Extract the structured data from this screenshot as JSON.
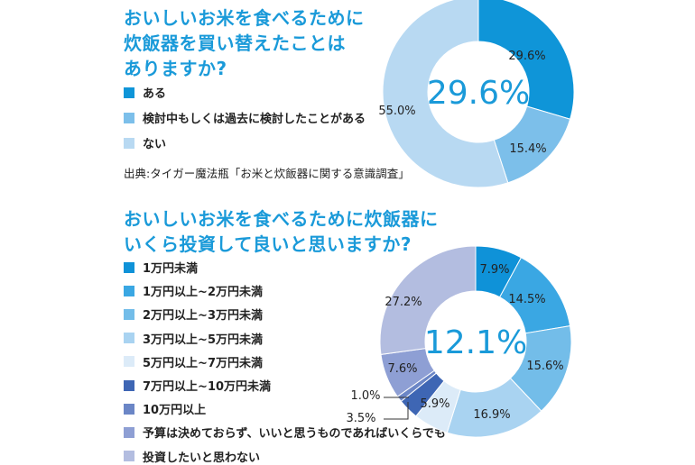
{
  "chart_data": [
    {
      "type": "pie",
      "variant": "donut",
      "title": "おいしいお米を食べるために炊飯器を買い替えたことはありますか?",
      "title_lines": [
        "おいしいお米を食べるために",
        "炊飯器を買い替えたことは",
        "ありますか?"
      ],
      "center_label": "29.6%",
      "categories": [
        "ある",
        "検討中もしくは過去に検討したことがある",
        "ない"
      ],
      "values": [
        29.6,
        15.4,
        55.0
      ],
      "labels": [
        "29.6%",
        "15.4%",
        "55.0%"
      ],
      "colors": [
        "#0f95d8",
        "#7cbfea",
        "#b8d9f2"
      ],
      "source": "出典:タイガー魔法瓶「お米と炊飯器に関する意識調査」",
      "legend_placement": "left"
    },
    {
      "type": "pie",
      "variant": "donut",
      "title": "おいしいお米を食べるために炊飯器にいくら投資して良いと思いますか?",
      "title_lines": [
        "おいしいお米を食べるために炊飯器に",
        "いくら投資して良いと思いますか?"
      ],
      "center_label": "12.1%",
      "categories": [
        "1万円未満",
        "1万円以上~2万円未満",
        "2万円以上~3万円未満",
        "3万円以上~5万円未満",
        "5万円以上~7万円未満",
        "7万円以上~10万円未満",
        "10万円以上",
        "予算は決めておらず、いいと思うものであればいくらでも",
        "投資したいと思わない"
      ],
      "values": [
        7.9,
        14.5,
        15.6,
        16.9,
        5.9,
        3.5,
        1.0,
        7.6,
        27.2
      ],
      "labels": [
        "7.9%",
        "14.5%",
        "15.6%",
        "16.9%",
        "5.9%",
        "3.5%",
        "1.0%",
        "7.6%",
        "27.2%"
      ],
      "colors": [
        "#0f92d8",
        "#3aa7e3",
        "#73bde9",
        "#a9d3f1",
        "#dcebf8",
        "#3e66b4",
        "#6b86c6",
        "#8e9fd4",
        "#b3bde0"
      ],
      "legend_placement": "left"
    }
  ]
}
